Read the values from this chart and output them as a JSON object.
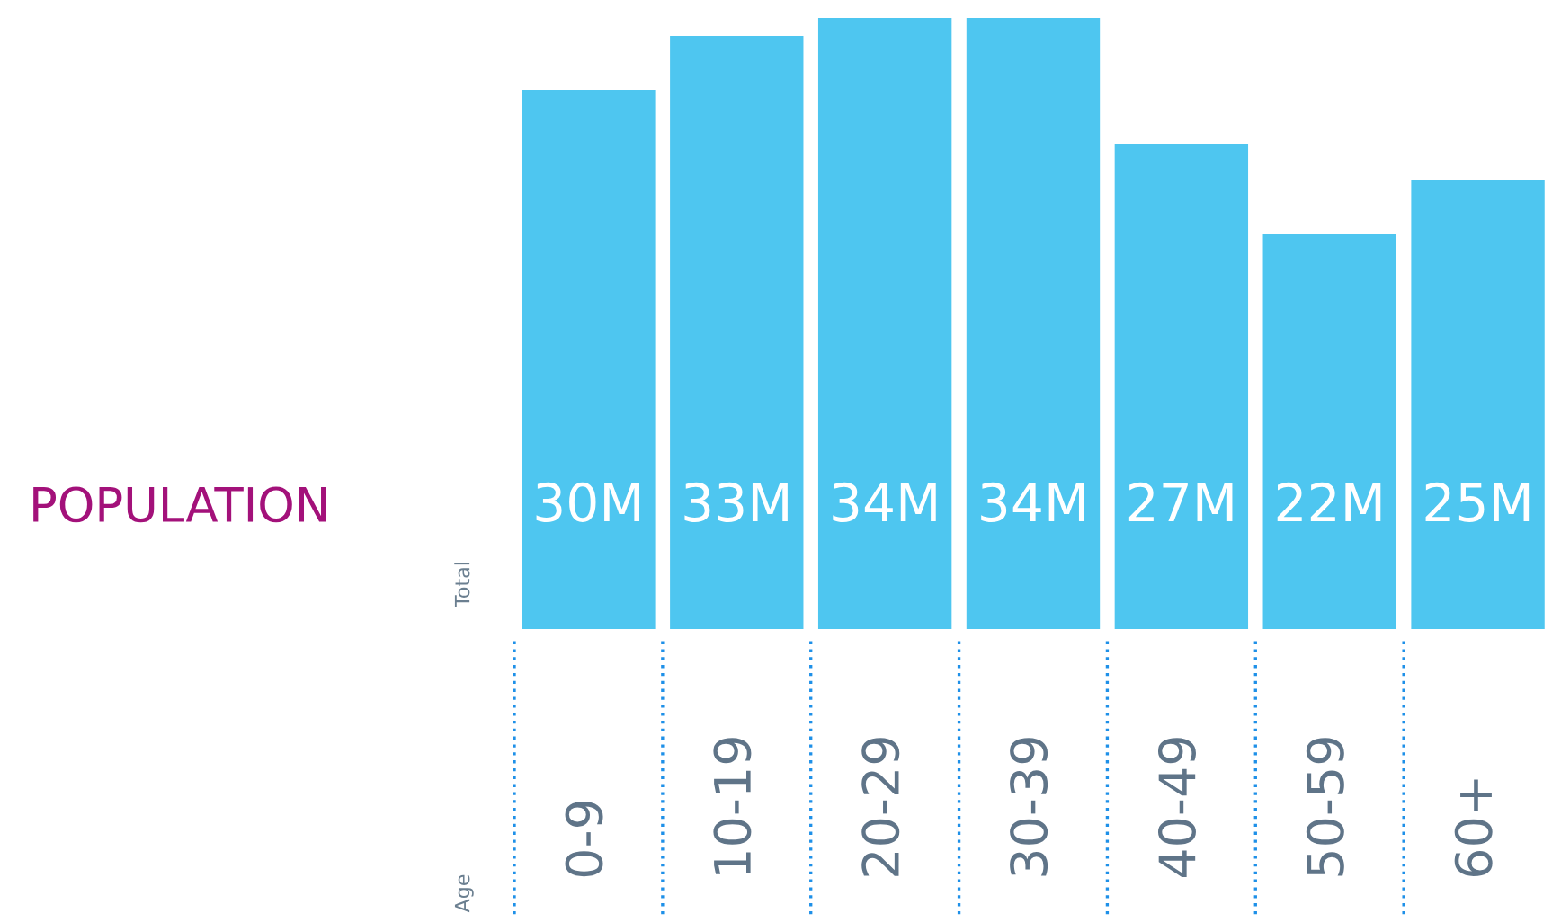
{
  "chart_data": {
    "type": "bar",
    "title": "POPULATION",
    "ylabel": "Total",
    "annotations": [
      "Age"
    ],
    "categories": [
      "0-9",
      "10-19",
      "20-29",
      "30-39",
      "40-49",
      "50-59",
      "60+"
    ],
    "values": [
      30,
      33,
      34,
      34,
      27,
      22,
      25
    ],
    "value_labels": [
      "30M",
      "33M",
      "34M",
      "34M",
      "27M",
      "22M",
      "25M"
    ],
    "color": "#4ec6f0",
    "data_labels": true
  }
}
